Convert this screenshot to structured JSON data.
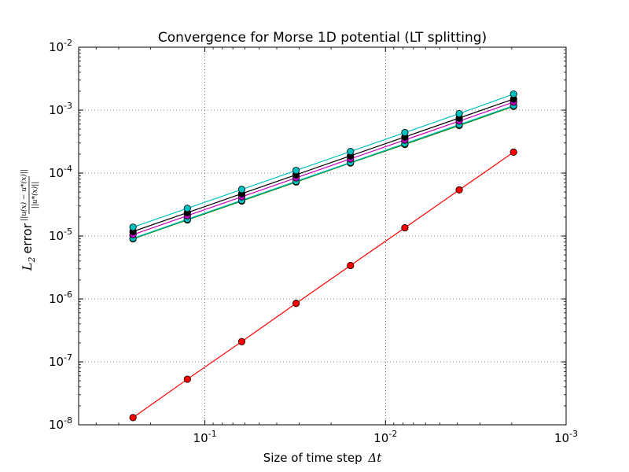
{
  "chart_data": {
    "type": "line",
    "title": "Convergence for Morse 1D potential (LT splitting)",
    "xlabel": {
      "text": "Size of time step",
      "math": "Δt"
    },
    "ylabel": {
      "prefix": "L",
      "prefix_sub": "2",
      "text": "error",
      "fraction_numerator": "||u(x) − u*(x)||",
      "fraction_denominator": "||u*(x)||"
    },
    "x_scale": "log",
    "y_scale": "log",
    "x_inverted": true,
    "xlim": [
      0.5,
      0.001
    ],
    "ylim": [
      1e-08,
      0.01
    ],
    "grid": true,
    "x_ticks": [
      {
        "value": 0.1,
        "base": "10",
        "exp": "-1"
      },
      {
        "value": 0.01,
        "base": "10",
        "exp": "-2"
      },
      {
        "value": 0.001,
        "base": "10",
        "exp": "-3"
      }
    ],
    "y_ticks": [
      {
        "value": 1e-08,
        "base": "10",
        "exp": "-8"
      },
      {
        "value": 1e-07,
        "base": "10",
        "exp": "-7"
      },
      {
        "value": 1e-06,
        "base": "10",
        "exp": "-6"
      },
      {
        "value": 1e-05,
        "base": "10",
        "exp": "-5"
      },
      {
        "value": 0.0001,
        "base": "10",
        "exp": "-4"
      },
      {
        "value": 0.001,
        "base": "10",
        "exp": "-3"
      },
      {
        "value": 0.01,
        "base": "10",
        "exp": "-2"
      }
    ],
    "x": [
      0.25,
      0.125,
      0.0625,
      0.03125,
      0.015625,
      0.0078125,
      0.00390625,
      0.001953125
    ],
    "series": [
      {
        "color": "#008000",
        "values": [
          9e-06,
          1.8e-05,
          3.6e-05,
          7.2e-05,
          0.000145,
          0.000285,
          0.00057,
          0.00115
        ]
      },
      {
        "color": "#00bfbf",
        "values": [
          9.2e-06,
          1.85e-05,
          3.7e-05,
          7.4e-05,
          0.000148,
          0.000295,
          0.00059,
          0.00118
        ]
      },
      {
        "color": "#bf00bf",
        "values": [
          1.05e-05,
          2.1e-05,
          4.2e-05,
          8.4e-05,
          0.000168,
          0.000335,
          0.00067,
          0.00134
        ]
      },
      {
        "color": "#000000",
        "values": [
          1.18e-05,
          2.35e-05,
          4.7e-05,
          9.4e-05,
          0.000188,
          0.000375,
          0.00075,
          0.0015
        ]
      },
      {
        "color": "#00bfbf",
        "values": [
          1.38e-05,
          2.75e-05,
          5.5e-05,
          0.00011,
          0.00022,
          0.00044,
          0.00088,
          0.0018
        ]
      },
      {
        "color": "#ff0000",
        "values": [
          1.3e-08,
          5.3e-08,
          2.1e-07,
          8.5e-07,
          3.4e-06,
          1.35e-05,
          5.4e-05,
          0.000215
        ]
      }
    ]
  }
}
